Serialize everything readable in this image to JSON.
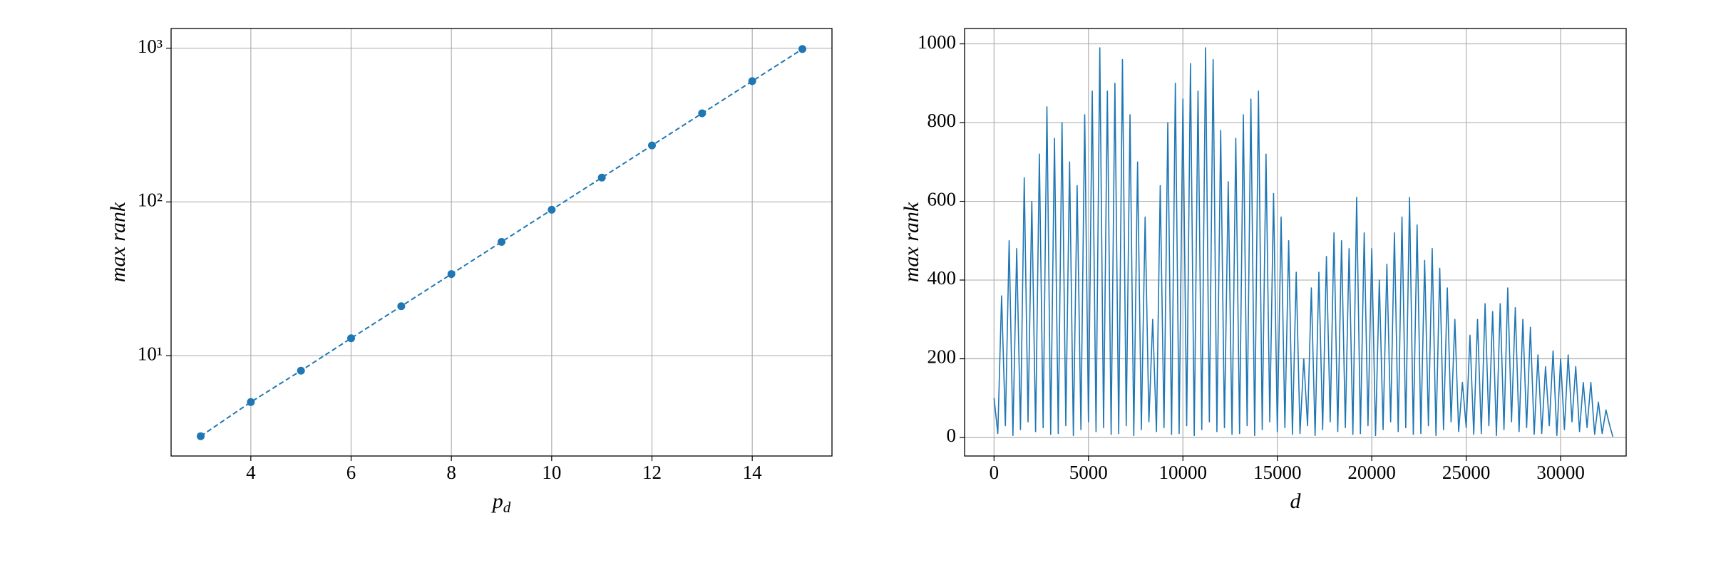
{
  "chart_data": [
    {
      "type": "line",
      "log_y": true,
      "linestyle": "dashed",
      "markers": true,
      "grid": true,
      "color": "#1f77b4",
      "xlabel": "p",
      "xlabel_sub": "d",
      "ylabel": "max rank",
      "x": [
        3,
        4,
        5,
        6,
        7,
        8,
        9,
        10,
        11,
        12,
        13,
        14,
        15
      ],
      "values": [
        3,
        5,
        8,
        13,
        21,
        34,
        55,
        89,
        144,
        233,
        377,
        610,
        987
      ],
      "xlim": [
        2.41,
        15.59
      ],
      "ylim": [
        2.23,
        1342
      ],
      "xticks": [
        4,
        6,
        8,
        10,
        12,
        14
      ],
      "yticks": [
        {
          "value": 10,
          "label": "10¹"
        },
        {
          "value": 100,
          "label": "10²"
        },
        {
          "value": 1000,
          "label": "10³"
        }
      ]
    },
    {
      "type": "line",
      "log_y": false,
      "linestyle": "solid",
      "markers": false,
      "grid": true,
      "color": "#1f77b4",
      "xlabel": "d",
      "ylabel": "max rank",
      "x": [
        0,
        200,
        400,
        600,
        800,
        1000,
        1200,
        1400,
        1600,
        1800,
        2000,
        2200,
        2400,
        2600,
        2800,
        3000,
        3200,
        3400,
        3600,
        3800,
        4000,
        4200,
        4400,
        4600,
        4800,
        5000,
        5200,
        5400,
        5600,
        5800,
        6000,
        6200,
        6400,
        6600,
        6800,
        7000,
        7200,
        7400,
        7600,
        7800,
        8000,
        8200,
        8400,
        8600,
        8800,
        9000,
        9200,
        9400,
        9600,
        9800,
        10000,
        10200,
        10400,
        10600,
        10800,
        11000,
        11200,
        11400,
        11600,
        11800,
        12000,
        12200,
        12400,
        12600,
        12800,
        13000,
        13200,
        13400,
        13600,
        13800,
        14000,
        14200,
        14400,
        14600,
        14800,
        15000,
        15200,
        15400,
        15600,
        15800,
        16000,
        16200,
        16400,
        16600,
        16800,
        17000,
        17200,
        17400,
        17600,
        17800,
        18000,
        18200,
        18400,
        18600,
        18800,
        19000,
        19200,
        19400,
        19600,
        19800,
        20000,
        20200,
        20400,
        20600,
        20800,
        21000,
        21200,
        21400,
        21600,
        21800,
        22000,
        22200,
        22400,
        22600,
        22800,
        23000,
        23200,
        23400,
        23600,
        23800,
        24000,
        24200,
        24400,
        24600,
        24800,
        25000,
        25200,
        25400,
        25600,
        25800,
        26000,
        26200,
        26400,
        26600,
        26800,
        27000,
        27200,
        27400,
        27600,
        27800,
        28000,
        28200,
        28400,
        28600,
        28800,
        29000,
        29200,
        29400,
        29600,
        29800,
        30000,
        30200,
        30400,
        30600,
        30800,
        31000,
        31200,
        31400,
        31600,
        31800,
        32000,
        32200,
        32400,
        32600,
        32767
      ],
      "values": [
        100,
        10,
        360,
        30,
        500,
        5,
        480,
        20,
        660,
        40,
        600,
        15,
        720,
        25,
        840,
        8,
        760,
        10,
        800,
        30,
        700,
        5,
        640,
        20,
        820,
        40,
        880,
        15,
        990,
        25,
        880,
        8,
        900,
        10,
        960,
        30,
        820,
        5,
        700,
        20,
        560,
        40,
        300,
        15,
        640,
        25,
        800,
        8,
        900,
        10,
        860,
        30,
        950,
        5,
        880,
        20,
        990,
        40,
        960,
        15,
        780,
        25,
        650,
        8,
        760,
        10,
        820,
        30,
        860,
        5,
        880,
        20,
        720,
        40,
        620,
        15,
        560,
        25,
        500,
        8,
        420,
        10,
        200,
        30,
        380,
        5,
        420,
        20,
        460,
        40,
        520,
        15,
        500,
        25,
        480,
        8,
        610,
        10,
        520,
        30,
        480,
        5,
        400,
        20,
        440,
        40,
        520,
        15,
        560,
        25,
        610,
        8,
        540,
        10,
        450,
        30,
        480,
        5,
        430,
        20,
        380,
        40,
        300,
        15,
        140,
        25,
        260,
        8,
        300,
        10,
        340,
        30,
        320,
        5,
        340,
        20,
        380,
        40,
        330,
        15,
        300,
        25,
        280,
        8,
        210,
        10,
        180,
        30,
        220,
        5,
        200,
        20,
        210,
        40,
        180,
        15,
        140,
        25,
        140,
        8,
        90,
        10,
        70,
        30,
        2
      ],
      "xlim": [
        -1560,
        33470
      ],
      "ylim": [
        -47,
        1039
      ],
      "xticks": [
        0,
        5000,
        10000,
        15000,
        20000,
        25000,
        30000
      ],
      "yticks": [
        0,
        200,
        400,
        600,
        800,
        1000
      ]
    }
  ]
}
